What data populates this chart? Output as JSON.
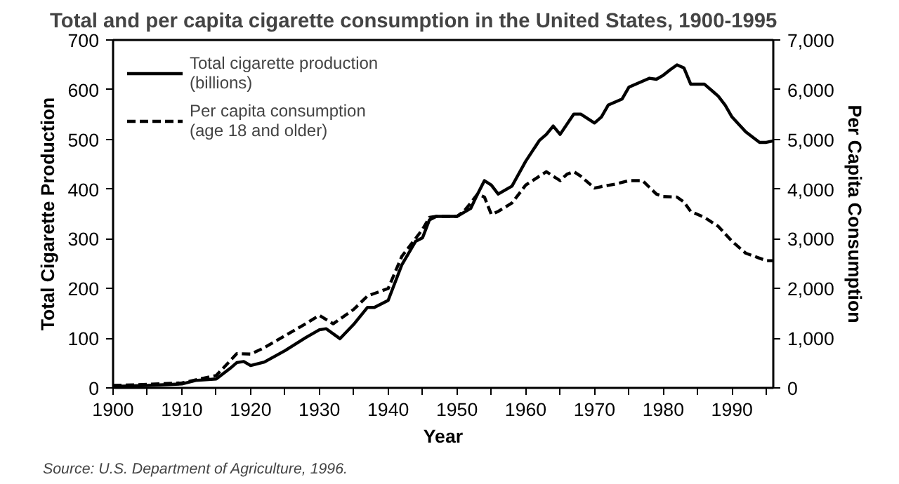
{
  "chart_data": {
    "type": "line",
    "title": "Total and per capita cigarette consumption in the United States, 1900-1995",
    "xlabel": "Year",
    "ylabel": "Total Cigarette Production",
    "y2label": "Per Capita Consumption",
    "annotations": [
      "Source:  U.S. Department of Agriculture, 1996."
    ],
    "xlim": [
      1900,
      1996
    ],
    "xticks": [
      1900,
      {
        "value": 1905,
        "label": null
      },
      1910,
      {
        "value": 1915,
        "label": null
      },
      1920,
      {
        "value": 1925,
        "label": null
      },
      1930,
      {
        "value": 1935,
        "label": null
      },
      1940,
      {
        "value": 1945,
        "label": null
      },
      1950,
      {
        "value": 1955,
        "label": null
      },
      1960,
      {
        "value": 1965,
        "label": null
      },
      1970,
      {
        "value": 1975,
        "label": null
      },
      1980,
      {
        "value": 1985,
        "label": null
      },
      1990,
      {
        "value": 1995,
        "label": null
      }
    ],
    "ylim": [
      0,
      700
    ],
    "yticks": [
      0,
      100,
      200,
      300,
      400,
      500,
      600,
      700
    ],
    "y2lim": [
      0,
      7000
    ],
    "y2ticks": [
      0,
      {
        "value": 1000,
        "label": "1,000"
      },
      {
        "value": 2000,
        "label": "2,000"
      },
      {
        "value": 3000,
        "label": "3,000"
      },
      {
        "value": 4000,
        "label": "4,000"
      },
      {
        "value": 5000,
        "label": "5,000"
      },
      {
        "value": 6000,
        "label": "6,000"
      },
      {
        "value": 7000,
        "label": "7,000"
      }
    ],
    "legend": "top left",
    "grid": false,
    "marker": "none",
    "series": [
      {
        "name": "Total cigarette production\n(billions)",
        "color": "#000000",
        "line_style": "solid",
        "x": [
          1900,
          1905,
          1910,
          1912,
          1915,
          1917,
          1918,
          1919,
          1920,
          1922,
          1925,
          1928,
          1930,
          1931,
          1933,
          1935,
          1937,
          1938,
          1940,
          1942,
          1944,
          1945,
          1946,
          1947,
          1950,
          1952,
          1953,
          1954,
          1955,
          1956,
          1958,
          1960,
          1962,
          1963,
          1964,
          1965,
          1967,
          1968,
          1970,
          1971,
          1972,
          1974,
          1975,
          1977,
          1978,
          1979,
          1980,
          1981,
          1982,
          1983,
          1984,
          1986,
          1988,
          1989,
          1990,
          1992,
          1994,
          1995,
          1996
        ],
        "values": [
          3,
          5,
          8,
          15,
          18,
          39,
          51,
          53,
          45,
          52,
          75,
          101,
          117,
          119,
          99,
          128,
          162,
          162,
          176,
          248,
          295,
          302,
          338,
          345,
          345,
          361,
          390,
          417,
          408,
          390,
          406,
          456,
          498,
          510,
          527,
          510,
          551,
          551,
          533,
          545,
          569,
          581,
          605,
          617,
          623,
          621,
          629,
          640,
          650,
          644,
          611,
          611,
          587,
          569,
          545,
          515,
          494,
          494,
          497
        ]
      },
      {
        "name": "Per capita consumption\n(age 18 and older)",
        "color": "#000000",
        "line_style": "dashed",
        "axis": "y2",
        "x": [
          1900,
          1905,
          1910,
          1915,
          1918,
          1920,
          1922,
          1925,
          1928,
          1930,
          1932,
          1935,
          1937,
          1940,
          1942,
          1944,
          1945,
          1946,
          1947,
          1950,
          1951,
          1952,
          1953,
          1954,
          1955,
          1956,
          1958,
          1960,
          1962,
          1963,
          1965,
          1966,
          1967,
          1968,
          1970,
          1971,
          1973,
          1975,
          1977,
          1979,
          1980,
          1982,
          1983,
          1984,
          1986,
          1988,
          1990,
          1992,
          1994,
          1995,
          1996
        ],
        "values": [
          50,
          70,
          100,
          250,
          690,
          680,
          810,
          1050,
          1290,
          1460,
          1290,
          1580,
          1850,
          2000,
          2650,
          3010,
          3190,
          3430,
          3450,
          3450,
          3550,
          3720,
          3900,
          3840,
          3490,
          3550,
          3720,
          4080,
          4260,
          4350,
          4170,
          4300,
          4350,
          4260,
          4020,
          4050,
          4100,
          4170,
          4170,
          3900,
          3850,
          3840,
          3740,
          3550,
          3430,
          3250,
          2950,
          2710,
          2610,
          2560,
          2560
        ]
      }
    ]
  }
}
